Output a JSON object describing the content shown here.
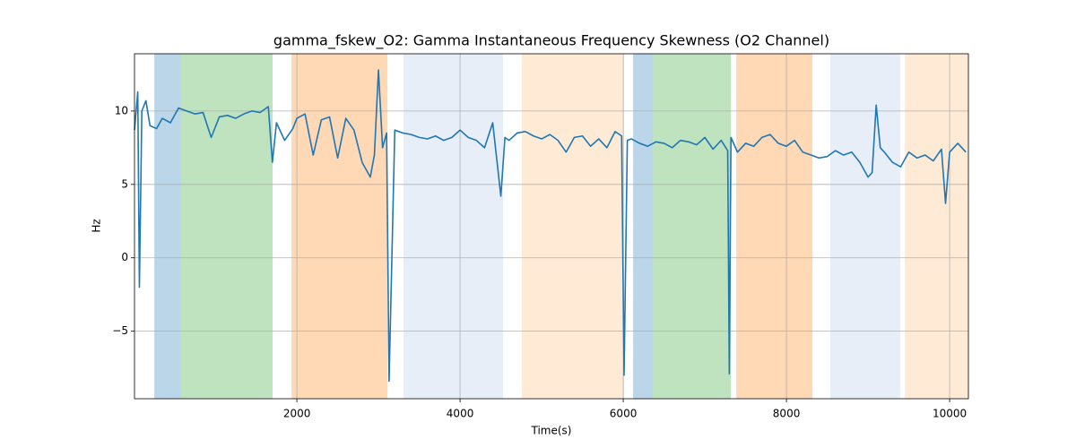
{
  "chart_data": {
    "type": "line",
    "title": "gamma_fskew_O2: Gamma Instantaneous Frequency Skewness (O2 Channel)",
    "xlabel": "Time(s)",
    "ylabel": "Hz",
    "xlim": [
      10,
      10230
    ],
    "ylim": [
      -9.6,
      13.9
    ],
    "xticks": [
      2000,
      4000,
      6000,
      8000,
      10000
    ],
    "yticks": [
      {
        "value": -5,
        "label": "−5"
      },
      0,
      5,
      10
    ],
    "grid": true,
    "spans": [
      {
        "start": 253,
        "end": 582,
        "color": "#1f77b4"
      },
      {
        "start": 582,
        "end": 1703,
        "color": "#2ca02c"
      },
      {
        "start": 1934,
        "end": 3110,
        "color": "#ff7f0e"
      },
      {
        "start": 3308,
        "end": 4527,
        "color": "#aec7e8"
      },
      {
        "start": 4758,
        "end": 6011,
        "color": "#ffbb78"
      },
      {
        "start": 6121,
        "end": 6363,
        "color": "#1f77b4"
      },
      {
        "start": 6363,
        "end": 7319,
        "color": "#2ca02c"
      },
      {
        "start": 7385,
        "end": 8319,
        "color": "#ff7f0e"
      },
      {
        "start": 8538,
        "end": 9396,
        "color": "#aec7e8"
      },
      {
        "start": 9451,
        "end": 10231,
        "color": "#ffbb78"
      }
    ],
    "x": [
      10,
      50,
      70,
      100,
      150,
      200,
      280,
      350,
      450,
      550,
      650,
      750,
      850,
      950,
      1050,
      1150,
      1250,
      1350,
      1450,
      1550,
      1650,
      1700,
      1750,
      1850,
      1950,
      2000,
      2100,
      2200,
      2300,
      2400,
      2500,
      2600,
      2700,
      2800,
      2900,
      2950,
      3000,
      3050,
      3100,
      3130,
      3200,
      3300,
      3400,
      3500,
      3600,
      3700,
      3800,
      3900,
      4000,
      4100,
      4200,
      4300,
      4400,
      4500,
      4550,
      4600,
      4700,
      4800,
      4900,
      5000,
      5100,
      5200,
      5300,
      5400,
      5500,
      5600,
      5700,
      5800,
      5900,
      5980,
      6010,
      6050,
      6100,
      6200,
      6300,
      6400,
      6500,
      6600,
      6700,
      6800,
      6900,
      7000,
      7100,
      7200,
      7280,
      7300,
      7320,
      7400,
      7500,
      7600,
      7700,
      7800,
      7900,
      8000,
      8100,
      8200,
      8300,
      8400,
      8500,
      8600,
      8700,
      8800,
      8900,
      9000,
      9050,
      9100,
      9150,
      9200,
      9300,
      9400,
      9500,
      9600,
      9700,
      9800,
      9900,
      9950,
      10000,
      10100,
      10200
    ],
    "series": [
      {
        "color": "#1f77b4",
        "values": [
          8.7,
          11.3,
          -2,
          10,
          10.7,
          9,
          8.8,
          9.5,
          9.2,
          10.2,
          10,
          9.8,
          9.9,
          8.2,
          9.6,
          9.7,
          9.5,
          9.8,
          10,
          9.9,
          10.3,
          6.5,
          9.2,
          8,
          8.8,
          9.5,
          9.8,
          7,
          9.4,
          9.6,
          6.8,
          9.5,
          8.7,
          6.5,
          5.5,
          7,
          12.8,
          7.5,
          8.5,
          -8.4,
          8.7,
          8.5,
          8.4,
          8.2,
          8.1,
          8.3,
          8,
          8.2,
          8.7,
          8.2,
          8,
          7.5,
          9.2,
          4.2,
          8.2,
          8,
          8.5,
          8.6,
          8.3,
          8.1,
          8.4,
          8,
          7.2,
          8.2,
          8.3,
          7.6,
          8.1,
          7.5,
          8.6,
          8.3,
          -8,
          8,
          8.1,
          7.8,
          7.6,
          7.9,
          7.8,
          7.5,
          8,
          7.9,
          7.7,
          8.2,
          7.4,
          8,
          7.3,
          -7.9,
          8.2,
          7.2,
          7.8,
          7.6,
          8.2,
          8.4,
          7.8,
          7.6,
          8,
          7.2,
          7,
          6.8,
          6.9,
          7.3,
          7,
          7.2,
          6.5,
          5.5,
          5.8,
          10.4,
          7.5,
          7.2,
          6.5,
          6.2,
          7.2,
          6.8,
          7,
          6.6,
          7.4,
          3.7,
          7.2,
          7.8,
          7.2
        ]
      }
    ]
  }
}
